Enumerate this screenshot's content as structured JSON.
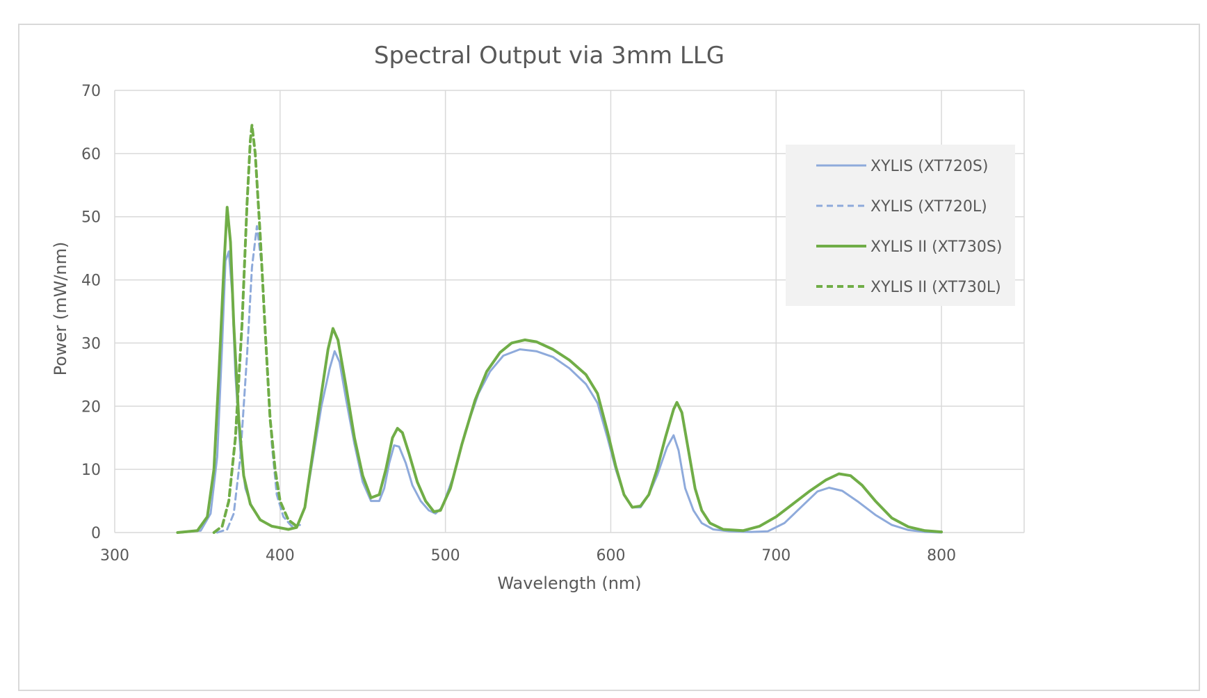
{
  "chart_data": {
    "type": "line",
    "title": "Spectral Output via 3mm LLG",
    "xlabel": "Wavelength (nm)",
    "ylabel": "Power (mW/nm)",
    "xlim": [
      300,
      850
    ],
    "ylim": [
      0,
      70
    ],
    "x_ticks": [
      300,
      400,
      500,
      600,
      700,
      800
    ],
    "y_ticks": [
      0,
      10,
      20,
      30,
      40,
      50,
      60,
      70
    ],
    "grid": true,
    "legend_position": "top-right",
    "series": [
      {
        "name": "XYLIS (XT720S)",
        "color": "#8eaadb",
        "dash": "solid",
        "points": [
          [
            340,
            0
          ],
          [
            352,
            0.3
          ],
          [
            358,
            3
          ],
          [
            362,
            12
          ],
          [
            365,
            30
          ],
          [
            367,
            43
          ],
          [
            369,
            44.5
          ],
          [
            371,
            38
          ],
          [
            373,
            25
          ],
          [
            376,
            13
          ],
          [
            379,
            7
          ],
          [
            383,
            4
          ],
          [
            388,
            2
          ],
          [
            395,
            1
          ],
          [
            405,
            0.5
          ],
          [
            410,
            0.8
          ],
          [
            415,
            4
          ],
          [
            420,
            12
          ],
          [
            425,
            20
          ],
          [
            430,
            26
          ],
          [
            433,
            28.7
          ],
          [
            436,
            27
          ],
          [
            440,
            21
          ],
          [
            445,
            14
          ],
          [
            450,
            8
          ],
          [
            455,
            5
          ],
          [
            460,
            5
          ],
          [
            463,
            7
          ],
          [
            466,
            11
          ],
          [
            469,
            13.8
          ],
          [
            472,
            13.6
          ],
          [
            476,
            11
          ],
          [
            480,
            7.5
          ],
          [
            485,
            5
          ],
          [
            490,
            3.5
          ],
          [
            494,
            3
          ],
          [
            498,
            4
          ],
          [
            505,
            9
          ],
          [
            512,
            16
          ],
          [
            520,
            22
          ],
          [
            527,
            25.5
          ],
          [
            535,
            28
          ],
          [
            545,
            29
          ],
          [
            555,
            28.7
          ],
          [
            565,
            27.8
          ],
          [
            575,
            26
          ],
          [
            585,
            23.5
          ],
          [
            592,
            20.5
          ],
          [
            598,
            15
          ],
          [
            603,
            10
          ],
          [
            608,
            6
          ],
          [
            613,
            4
          ],
          [
            618,
            4
          ],
          [
            623,
            6
          ],
          [
            628,
            9
          ],
          [
            634,
            13.5
          ],
          [
            638,
            15.4
          ],
          [
            641,
            13
          ],
          [
            645,
            7
          ],
          [
            650,
            3.5
          ],
          [
            655,
            1.5
          ],
          [
            662,
            0.5
          ],
          [
            672,
            0.2
          ],
          [
            685,
            0.1
          ],
          [
            695,
            0.2
          ],
          [
            705,
            1.5
          ],
          [
            715,
            4
          ],
          [
            725,
            6.5
          ],
          [
            732,
            7.1
          ],
          [
            740,
            6.6
          ],
          [
            750,
            4.8
          ],
          [
            760,
            2.8
          ],
          [
            770,
            1.2
          ],
          [
            780,
            0.4
          ],
          [
            790,
            0.1
          ],
          [
            800,
            0
          ]
        ]
      },
      {
        "name": "XYLIS (XT720L)",
        "color": "#8eaadb",
        "dash": "dashed",
        "points": [
          [
            362,
            0
          ],
          [
            368,
            0.5
          ],
          [
            372,
            3
          ],
          [
            376,
            12
          ],
          [
            380,
            28
          ],
          [
            383,
            42
          ],
          [
            386,
            48.5
          ],
          [
            389,
            42
          ],
          [
            392,
            28
          ],
          [
            395,
            14
          ],
          [
            398,
            6
          ],
          [
            402,
            2.5
          ],
          [
            407,
            1
          ],
          [
            412,
            1.2
          ]
        ]
      },
      {
        "name": "XYLIS II (XT730S)",
        "color": "#70ad47",
        "dash": "solid",
        "points": [
          [
            338,
            0
          ],
          [
            350,
            0.3
          ],
          [
            356,
            2.5
          ],
          [
            360,
            10
          ],
          [
            363,
            25
          ],
          [
            366,
            42
          ],
          [
            368,
            51.5
          ],
          [
            370,
            46
          ],
          [
            372,
            33
          ],
          [
            375,
            18
          ],
          [
            378,
            9
          ],
          [
            382,
            4.5
          ],
          [
            388,
            2
          ],
          [
            395,
            1
          ],
          [
            405,
            0.5
          ],
          [
            410,
            0.8
          ],
          [
            415,
            4
          ],
          [
            420,
            13
          ],
          [
            425,
            22
          ],
          [
            429,
            29
          ],
          [
            432,
            32.3
          ],
          [
            435,
            30.5
          ],
          [
            440,
            23
          ],
          [
            445,
            15
          ],
          [
            450,
            9
          ],
          [
            455,
            5.5
          ],
          [
            460,
            6
          ],
          [
            464,
            10
          ],
          [
            468,
            15
          ],
          [
            471,
            16.5
          ],
          [
            474,
            15.8
          ],
          [
            478,
            12.5
          ],
          [
            483,
            8
          ],
          [
            488,
            5
          ],
          [
            493,
            3.3
          ],
          [
            497,
            3.5
          ],
          [
            503,
            7
          ],
          [
            510,
            14
          ],
          [
            518,
            21
          ],
          [
            525,
            25.5
          ],
          [
            533,
            28.5
          ],
          [
            540,
            30
          ],
          [
            548,
            30.5
          ],
          [
            555,
            30.2
          ],
          [
            565,
            29
          ],
          [
            575,
            27.3
          ],
          [
            585,
            25
          ],
          [
            592,
            22
          ],
          [
            598,
            16
          ],
          [
            603,
            10.5
          ],
          [
            608,
            6
          ],
          [
            613,
            4
          ],
          [
            618,
            4.2
          ],
          [
            623,
            6
          ],
          [
            628,
            10
          ],
          [
            633,
            15
          ],
          [
            638,
            19.5
          ],
          [
            640,
            20.6
          ],
          [
            643,
            19
          ],
          [
            647,
            13
          ],
          [
            651,
            7
          ],
          [
            655,
            3.5
          ],
          [
            660,
            1.5
          ],
          [
            668,
            0.5
          ],
          [
            680,
            0.3
          ],
          [
            690,
            1
          ],
          [
            700,
            2.5
          ],
          [
            710,
            4.5
          ],
          [
            720,
            6.5
          ],
          [
            730,
            8.3
          ],
          [
            738,
            9.3
          ],
          [
            745,
            9
          ],
          [
            752,
            7.5
          ],
          [
            760,
            5
          ],
          [
            770,
            2.3
          ],
          [
            780,
            0.9
          ],
          [
            790,
            0.3
          ],
          [
            800,
            0.1
          ]
        ]
      },
      {
        "name": "XYLIS II (XT730L)",
        "color": "#70ad47",
        "dash": "dashed",
        "points": [
          [
            360,
            0
          ],
          [
            365,
            1
          ],
          [
            369,
            5
          ],
          [
            373,
            15
          ],
          [
            377,
            33
          ],
          [
            380,
            52
          ],
          [
            382,
            62
          ],
          [
            383,
            64.5
          ],
          [
            385,
            60
          ],
          [
            388,
            47
          ],
          [
            391,
            32
          ],
          [
            394,
            18
          ],
          [
            397,
            10
          ],
          [
            400,
            5
          ],
          [
            405,
            2
          ],
          [
            410,
            1
          ]
        ]
      }
    ]
  }
}
